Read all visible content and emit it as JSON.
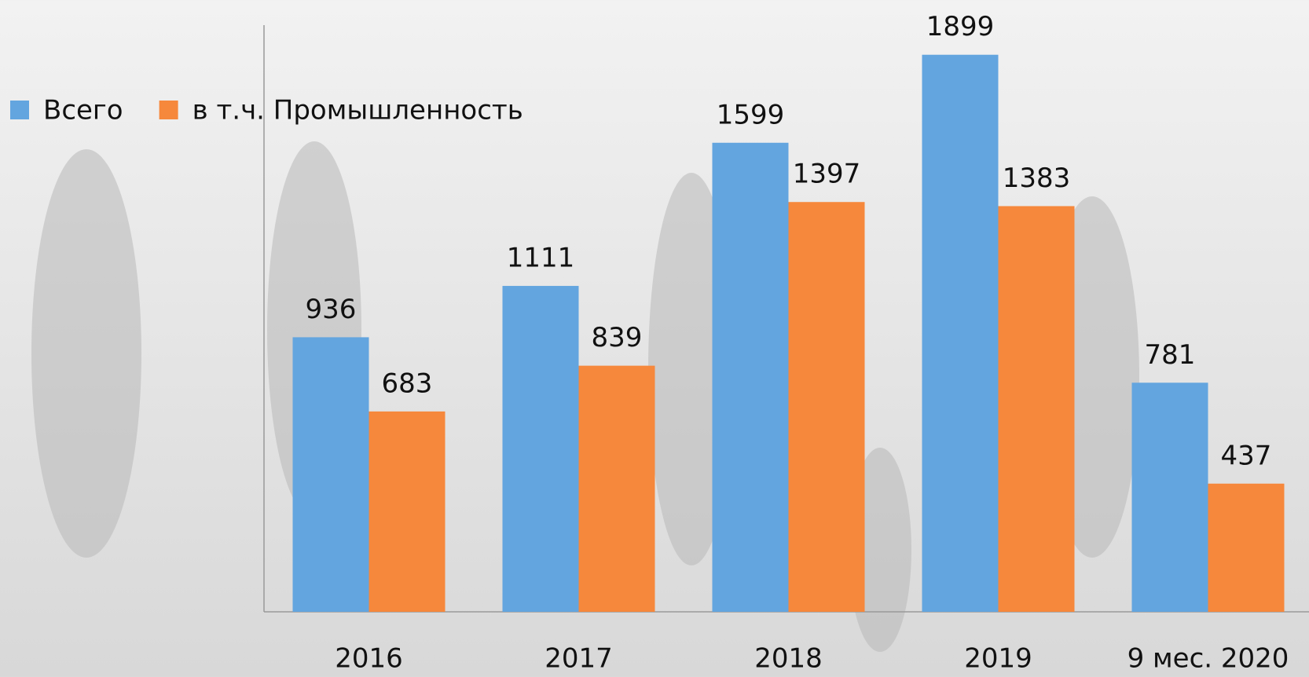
{
  "chart_data": {
    "type": "bar",
    "categories": [
      "2016",
      "2017",
      "2018",
      "2019",
      "9 мес. 2020"
    ],
    "series": [
      {
        "name": "Всего",
        "color": "#63a5df",
        "values": [
          936,
          1111,
          1599,
          1899,
          781
        ]
      },
      {
        "name": "в т.ч. Промышленность",
        "color": "#f6883c",
        "values": [
          683,
          839,
          1397,
          1383,
          437
        ]
      }
    ],
    "ylim": [
      0,
      2000
    ],
    "legend": "top-left"
  }
}
